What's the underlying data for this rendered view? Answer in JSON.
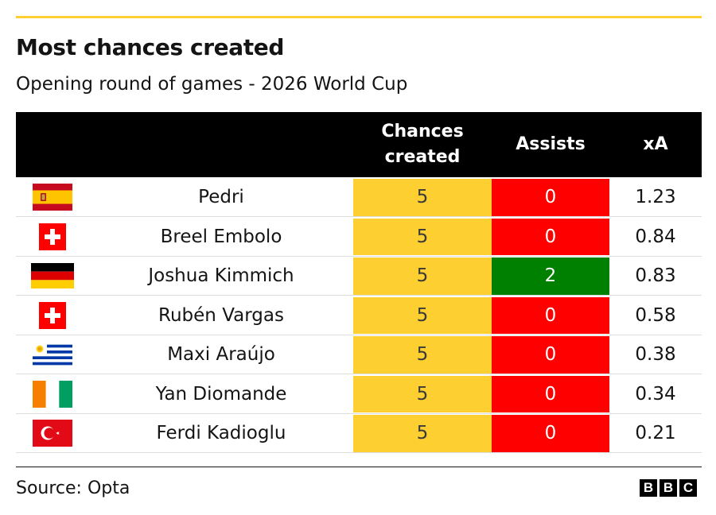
{
  "title": "Most chances created",
  "subtitle": "Opening round of games - 2026 World Cup",
  "columns": {
    "chances": "Chances created",
    "assists": "Assists",
    "xa": "xA"
  },
  "colors": {
    "chances": "#fdcf30",
    "assists_zero": "#ff0000",
    "assists_positive": "#008000",
    "accent_rule": "#fdcf30"
  },
  "rows": [
    {
      "flag": "spain-flag-icon",
      "player": "Pedri",
      "chances": "5",
      "assists": "0",
      "xa": "1.23"
    },
    {
      "flag": "switzerland-flag-icon",
      "player": "Breel Embolo",
      "chances": "5",
      "assists": "0",
      "xa": "0.84"
    },
    {
      "flag": "germany-flag-icon",
      "player": "Joshua Kimmich",
      "chances": "5",
      "assists": "2",
      "xa": "0.83"
    },
    {
      "flag": "switzerland-flag-icon",
      "player": "Rubén Vargas",
      "chances": "5",
      "assists": "0",
      "xa": "0.58"
    },
    {
      "flag": "uruguay-flag-icon",
      "player": "Maxi Araújo",
      "chances": "5",
      "assists": "0",
      "xa": "0.38"
    },
    {
      "flag": "ivory-coast-flag-icon",
      "player": "Yan Diomande",
      "chances": "5",
      "assists": "0",
      "xa": "0.34"
    },
    {
      "flag": "turkey-flag-icon",
      "player": "Ferdi Kadioglu",
      "chances": "5",
      "assists": "0",
      "xa": "0.21"
    }
  ],
  "chart_data": {
    "type": "table",
    "title": "Most chances created",
    "subtitle": "Opening round of games - 2026 World Cup",
    "columns": [
      "Chances created",
      "Assists",
      "xA"
    ],
    "rows": [
      {
        "player": "Pedri",
        "chances_created": 5,
        "assists": 0,
        "xA": 1.23
      },
      {
        "player": "Breel Embolo",
        "chances_created": 5,
        "assists": 0,
        "xA": 0.84
      },
      {
        "player": "Joshua Kimmich",
        "chances_created": 5,
        "assists": 2,
        "xA": 0.83
      },
      {
        "player": "Rubén Vargas",
        "chances_created": 5,
        "assists": 0,
        "xA": 0.58
      },
      {
        "player": "Maxi Araújo",
        "chances_created": 5,
        "assists": 0,
        "xA": 0.38
      },
      {
        "player": "Yan Diomande",
        "chances_created": 5,
        "assists": 0,
        "xA": 0.34
      },
      {
        "player": "Ferdi Kadioglu",
        "chances_created": 5,
        "assists": 0,
        "xA": 0.21
      }
    ],
    "source": "Source: Opta"
  },
  "footer": {
    "source": "Source: Opta",
    "logo": [
      "B",
      "B",
      "C"
    ]
  }
}
